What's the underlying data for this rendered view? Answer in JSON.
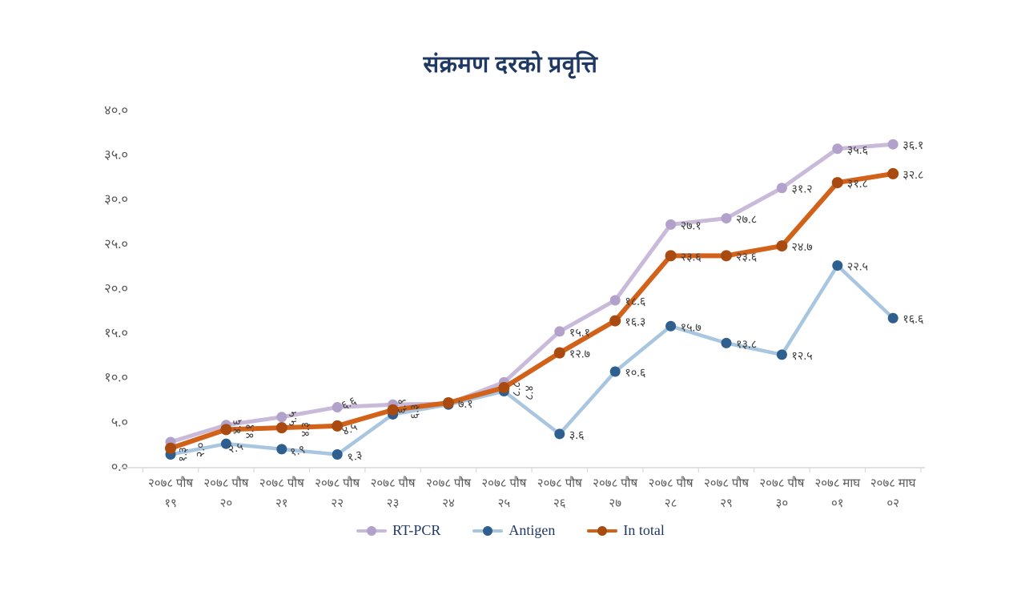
{
  "chart_data": {
    "type": "line",
    "title": "संक्रमण दरको प्रवृत्ति",
    "title_color": "#1f3864",
    "axis_label_color": "#595959",
    "data_label_color": "#3d3d3d",
    "axis_line_color": "#d9d9d9",
    "background_color": "#ffffff",
    "ylim": [
      0,
      40
    ],
    "grid": false,
    "legend_position": "bottom",
    "y_tick_labels": [
      "४०.०",
      "३५.०",
      "३०.०",
      "२५.०",
      "२०.०",
      "१५.०",
      "१०.०",
      "५.०",
      "०.०"
    ],
    "y_tick_values": [
      40,
      35,
      30,
      25,
      20,
      15,
      10,
      5,
      0
    ],
    "categories": [
      {
        "month": "२०७८ पौष",
        "day": "१९"
      },
      {
        "month": "२०७८ पौष",
        "day": "२०"
      },
      {
        "month": "२०७८ पौष",
        "day": "२१"
      },
      {
        "month": "२०७८ पौष",
        "day": "२२"
      },
      {
        "month": "२०७८ पौष",
        "day": "२३"
      },
      {
        "month": "२०७८ पौष",
        "day": "२४"
      },
      {
        "month": "२०७८ पौष",
        "day": "२५"
      },
      {
        "month": "२०७८ पौष",
        "day": "२६"
      },
      {
        "month": "२०७८ पौष",
        "day": "२७"
      },
      {
        "month": "२०७८ पौष",
        "day": "२८"
      },
      {
        "month": "२०७८ पौष",
        "day": "२९"
      },
      {
        "month": "२०७८ पौष",
        "day": "३०"
      },
      {
        "month": "२०७८ माघ",
        "day": "०१"
      },
      {
        "month": "२०७८ माघ",
        "day": "०२"
      }
    ],
    "series": [
      {
        "name": "RT-PCR",
        "line_color": "#c9bada",
        "marker_color": "#b2a1cb",
        "values": [
          2.7,
          4.6,
          5.5,
          6.6,
          6.9,
          7.0,
          9.4,
          15.1,
          18.6,
          27.1,
          27.8,
          31.2,
          35.6,
          36.1
        ],
        "labels": [
          "",
          "४.६",
          "५.५",
          "६.६",
          "६.९",
          "",
          "",
          "१५.१",
          "१८.६",
          "२७.१",
          "२७.८",
          "३१.२",
          "३५.६",
          "३६.१"
        ],
        "label_rotations": [
          0,
          -90,
          -90,
          -25,
          -90,
          0,
          0,
          0,
          0,
          0,
          0,
          0,
          0,
          0
        ]
      },
      {
        "name": "Antigen",
        "line_color": "#a9c6e0",
        "marker_color": "#2e5f8e",
        "values": [
          1.3,
          2.5,
          1.9,
          1.3,
          5.8,
          6.9,
          8.4,
          3.6,
          10.6,
          15.7,
          13.8,
          12.5,
          22.5,
          16.6
        ],
        "labels": [
          "१.३",
          "२.५",
          "१.९",
          "१.३",
          "",
          "",
          "८.४",
          "३.६",
          "१०.६",
          "१५.७",
          "१३.८",
          "१२.५",
          "२२.५",
          "१६.६"
        ],
        "label_rotations": [
          -90,
          -15,
          -15,
          -15,
          0,
          0,
          -90,
          0,
          0,
          0,
          0,
          0,
          0,
          0
        ]
      },
      {
        "name": "In total",
        "line_color": "#d2611a",
        "marker_color": "#a94a10",
        "values": [
          2.0,
          4.1,
          4.3,
          4.5,
          6.3,
          7.1,
          8.8,
          12.7,
          16.3,
          23.6,
          23.6,
          24.7,
          31.8,
          32.8
        ],
        "labels": [
          "२.०",
          "४.१",
          "४.३",
          "४.५",
          "६.३",
          "७.१",
          "८.८",
          "१२.७",
          "१६.३",
          "२३.६",
          "२३.६",
          "२४.७",
          "३१.८",
          "३२.८"
        ],
        "label_rotations": [
          -90,
          -90,
          -90,
          -25,
          -90,
          0,
          -90,
          0,
          0,
          0,
          0,
          0,
          0,
          0
        ]
      }
    ],
    "legend_labels": [
      "RT-PCR",
      "Antigen",
      "In total"
    ]
  }
}
